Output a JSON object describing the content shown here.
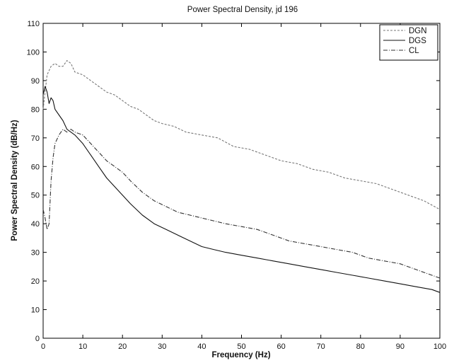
{
  "chart_data": {
    "type": "line",
    "title": "Power Spectral Density, jd 196",
    "xlabel": "Frequency (Hz)",
    "ylabel": "Power Spectral Density (dB/Hz)",
    "xlim": [
      0,
      100
    ],
    "ylim": [
      0,
      110
    ],
    "xticks": [
      "0",
      "10",
      "20",
      "30",
      "40",
      "50",
      "60",
      "70",
      "80",
      "90",
      "100"
    ],
    "yticks": [
      "0",
      "10",
      "20",
      "30",
      "40",
      "50",
      "60",
      "70",
      "80",
      "90",
      "100",
      "110"
    ],
    "grid": false,
    "legend": {
      "position": "top-right",
      "entries": [
        "DGN",
        "DGS",
        "CL"
      ]
    },
    "series": [
      {
        "name": "DGN",
        "color": "#777777",
        "dash": "3,2",
        "x": [
          0,
          1,
          2,
          3,
          4,
          5,
          6,
          7,
          8,
          10,
          12,
          14,
          16,
          18,
          20,
          22,
          24,
          26,
          28,
          30,
          33,
          36,
          40,
          44,
          48,
          52,
          56,
          60,
          64,
          68,
          72,
          76,
          80,
          84,
          88,
          92,
          96,
          100
        ],
        "y": [
          80,
          92,
          95,
          96,
          95,
          95,
          97,
          96,
          93,
          92,
          90,
          88,
          86,
          85,
          83,
          81,
          80,
          78,
          76,
          75,
          74,
          72,
          71,
          70,
          67,
          66,
          64,
          62,
          61,
          59,
          58,
          56,
          55,
          54,
          52,
          50,
          48,
          45
        ]
      },
      {
        "name": "DGS",
        "color": "#111111",
        "dash": "",
        "x": [
          0,
          0.5,
          1,
          1.5,
          2,
          2.5,
          3,
          4,
          5,
          6,
          8,
          10,
          12,
          14,
          16,
          18,
          20,
          22,
          25,
          28,
          31,
          34,
          37,
          40,
          43,
          46,
          50,
          54,
          58,
          62,
          66,
          70,
          74,
          78,
          82,
          86,
          90,
          94,
          98,
          100
        ],
        "y": [
          85,
          88,
          86,
          82,
          84,
          83,
          80,
          78,
          76,
          73,
          71,
          68,
          64,
          60,
          56,
          53,
          50,
          47,
          43,
          40,
          38,
          36,
          34,
          32,
          31,
          30,
          29,
          28,
          27,
          26,
          25,
          24,
          23,
          22,
          21,
          20,
          19,
          18,
          17,
          16
        ]
      },
      {
        "name": "CL",
        "color": "#333333",
        "dash": "6,2,1,2",
        "x": [
          0,
          0.5,
          1,
          1.5,
          2,
          2.5,
          3,
          4,
          5,
          6,
          7,
          8,
          10,
          12,
          14,
          16,
          18,
          20,
          22,
          25,
          28,
          31,
          34,
          37,
          40,
          43,
          46,
          50,
          54,
          58,
          62,
          66,
          70,
          74,
          78,
          82,
          86,
          90,
          94,
          98,
          100
        ],
        "y": [
          45,
          42,
          38,
          40,
          55,
          63,
          68,
          71,
          73,
          72,
          73,
          72,
          71,
          68,
          65,
          62,
          60,
          58,
          55,
          51,
          48,
          46,
          44,
          43,
          42,
          41,
          40,
          39,
          38,
          36,
          34,
          33,
          32,
          31,
          30,
          28,
          27,
          26,
          24,
          22,
          21
        ]
      }
    ]
  }
}
